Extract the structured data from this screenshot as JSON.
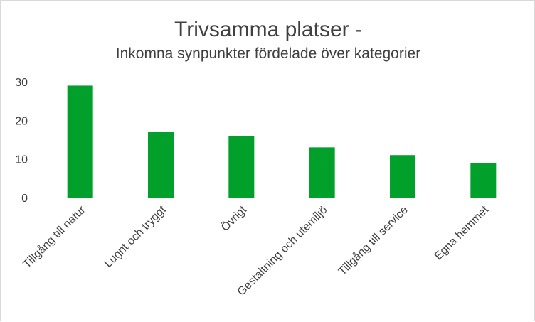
{
  "chart_data": {
    "type": "bar",
    "title": "Trivsamma platser -",
    "subtitle": "Inkomna synpunkter fördelade över kategorier",
    "xlabel": "",
    "ylabel": "",
    "categories": [
      "Tillgång till natur",
      "Lugnt och tryggt",
      "Övrigt",
      "Gestaltning och utemiljö",
      "Tillgång till service",
      "Egna hemmet"
    ],
    "values": [
      29,
      17,
      16,
      13,
      11,
      9
    ],
    "ylim": [
      0,
      30
    ],
    "yticks": [
      0,
      10,
      20,
      30
    ],
    "grid": false,
    "legend": "none",
    "bar_color": "#00a02a"
  }
}
